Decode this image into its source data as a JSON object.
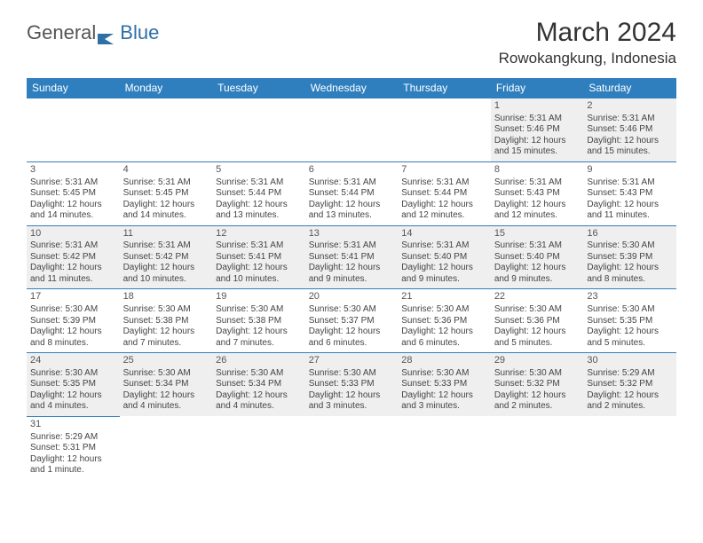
{
  "logo": {
    "part1": "General",
    "part2": "Blue"
  },
  "title": "March 2024",
  "location": "Rowokangkung, Indonesia",
  "colors": {
    "header_bg": "#2f7fbf",
    "header_text": "#ffffff",
    "row_alt_bg": "#efefef",
    "border": "#2f7fbf",
    "logo_gray": "#555555",
    "logo_blue": "#2f6fa8"
  },
  "weekdays": [
    "Sunday",
    "Monday",
    "Tuesday",
    "Wednesday",
    "Thursday",
    "Friday",
    "Saturday"
  ],
  "weeks": [
    [
      null,
      null,
      null,
      null,
      null,
      {
        "day": "1",
        "sunrise": "Sunrise: 5:31 AM",
        "sunset": "Sunset: 5:46 PM",
        "daylight": "Daylight: 12 hours and 15 minutes."
      },
      {
        "day": "2",
        "sunrise": "Sunrise: 5:31 AM",
        "sunset": "Sunset: 5:46 PM",
        "daylight": "Daylight: 12 hours and 15 minutes."
      }
    ],
    [
      {
        "day": "3",
        "sunrise": "Sunrise: 5:31 AM",
        "sunset": "Sunset: 5:45 PM",
        "daylight": "Daylight: 12 hours and 14 minutes."
      },
      {
        "day": "4",
        "sunrise": "Sunrise: 5:31 AM",
        "sunset": "Sunset: 5:45 PM",
        "daylight": "Daylight: 12 hours and 14 minutes."
      },
      {
        "day": "5",
        "sunrise": "Sunrise: 5:31 AM",
        "sunset": "Sunset: 5:44 PM",
        "daylight": "Daylight: 12 hours and 13 minutes."
      },
      {
        "day": "6",
        "sunrise": "Sunrise: 5:31 AM",
        "sunset": "Sunset: 5:44 PM",
        "daylight": "Daylight: 12 hours and 13 minutes."
      },
      {
        "day": "7",
        "sunrise": "Sunrise: 5:31 AM",
        "sunset": "Sunset: 5:44 PM",
        "daylight": "Daylight: 12 hours and 12 minutes."
      },
      {
        "day": "8",
        "sunrise": "Sunrise: 5:31 AM",
        "sunset": "Sunset: 5:43 PM",
        "daylight": "Daylight: 12 hours and 12 minutes."
      },
      {
        "day": "9",
        "sunrise": "Sunrise: 5:31 AM",
        "sunset": "Sunset: 5:43 PM",
        "daylight": "Daylight: 12 hours and 11 minutes."
      }
    ],
    [
      {
        "day": "10",
        "sunrise": "Sunrise: 5:31 AM",
        "sunset": "Sunset: 5:42 PM",
        "daylight": "Daylight: 12 hours and 11 minutes."
      },
      {
        "day": "11",
        "sunrise": "Sunrise: 5:31 AM",
        "sunset": "Sunset: 5:42 PM",
        "daylight": "Daylight: 12 hours and 10 minutes."
      },
      {
        "day": "12",
        "sunrise": "Sunrise: 5:31 AM",
        "sunset": "Sunset: 5:41 PM",
        "daylight": "Daylight: 12 hours and 10 minutes."
      },
      {
        "day": "13",
        "sunrise": "Sunrise: 5:31 AM",
        "sunset": "Sunset: 5:41 PM",
        "daylight": "Daylight: 12 hours and 9 minutes."
      },
      {
        "day": "14",
        "sunrise": "Sunrise: 5:31 AM",
        "sunset": "Sunset: 5:40 PM",
        "daylight": "Daylight: 12 hours and 9 minutes."
      },
      {
        "day": "15",
        "sunrise": "Sunrise: 5:31 AM",
        "sunset": "Sunset: 5:40 PM",
        "daylight": "Daylight: 12 hours and 9 minutes."
      },
      {
        "day": "16",
        "sunrise": "Sunrise: 5:30 AM",
        "sunset": "Sunset: 5:39 PM",
        "daylight": "Daylight: 12 hours and 8 minutes."
      }
    ],
    [
      {
        "day": "17",
        "sunrise": "Sunrise: 5:30 AM",
        "sunset": "Sunset: 5:39 PM",
        "daylight": "Daylight: 12 hours and 8 minutes."
      },
      {
        "day": "18",
        "sunrise": "Sunrise: 5:30 AM",
        "sunset": "Sunset: 5:38 PM",
        "daylight": "Daylight: 12 hours and 7 minutes."
      },
      {
        "day": "19",
        "sunrise": "Sunrise: 5:30 AM",
        "sunset": "Sunset: 5:38 PM",
        "daylight": "Daylight: 12 hours and 7 minutes."
      },
      {
        "day": "20",
        "sunrise": "Sunrise: 5:30 AM",
        "sunset": "Sunset: 5:37 PM",
        "daylight": "Daylight: 12 hours and 6 minutes."
      },
      {
        "day": "21",
        "sunrise": "Sunrise: 5:30 AM",
        "sunset": "Sunset: 5:36 PM",
        "daylight": "Daylight: 12 hours and 6 minutes."
      },
      {
        "day": "22",
        "sunrise": "Sunrise: 5:30 AM",
        "sunset": "Sunset: 5:36 PM",
        "daylight": "Daylight: 12 hours and 5 minutes."
      },
      {
        "day": "23",
        "sunrise": "Sunrise: 5:30 AM",
        "sunset": "Sunset: 5:35 PM",
        "daylight": "Daylight: 12 hours and 5 minutes."
      }
    ],
    [
      {
        "day": "24",
        "sunrise": "Sunrise: 5:30 AM",
        "sunset": "Sunset: 5:35 PM",
        "daylight": "Daylight: 12 hours and 4 minutes."
      },
      {
        "day": "25",
        "sunrise": "Sunrise: 5:30 AM",
        "sunset": "Sunset: 5:34 PM",
        "daylight": "Daylight: 12 hours and 4 minutes."
      },
      {
        "day": "26",
        "sunrise": "Sunrise: 5:30 AM",
        "sunset": "Sunset: 5:34 PM",
        "daylight": "Daylight: 12 hours and 4 minutes."
      },
      {
        "day": "27",
        "sunrise": "Sunrise: 5:30 AM",
        "sunset": "Sunset: 5:33 PM",
        "daylight": "Daylight: 12 hours and 3 minutes."
      },
      {
        "day": "28",
        "sunrise": "Sunrise: 5:30 AM",
        "sunset": "Sunset: 5:33 PM",
        "daylight": "Daylight: 12 hours and 3 minutes."
      },
      {
        "day": "29",
        "sunrise": "Sunrise: 5:30 AM",
        "sunset": "Sunset: 5:32 PM",
        "daylight": "Daylight: 12 hours and 2 minutes."
      },
      {
        "day": "30",
        "sunrise": "Sunrise: 5:29 AM",
        "sunset": "Sunset: 5:32 PM",
        "daylight": "Daylight: 12 hours and 2 minutes."
      }
    ],
    [
      {
        "day": "31",
        "sunrise": "Sunrise: 5:29 AM",
        "sunset": "Sunset: 5:31 PM",
        "daylight": "Daylight: 12 hours and 1 minute."
      },
      null,
      null,
      null,
      null,
      null,
      null
    ]
  ]
}
